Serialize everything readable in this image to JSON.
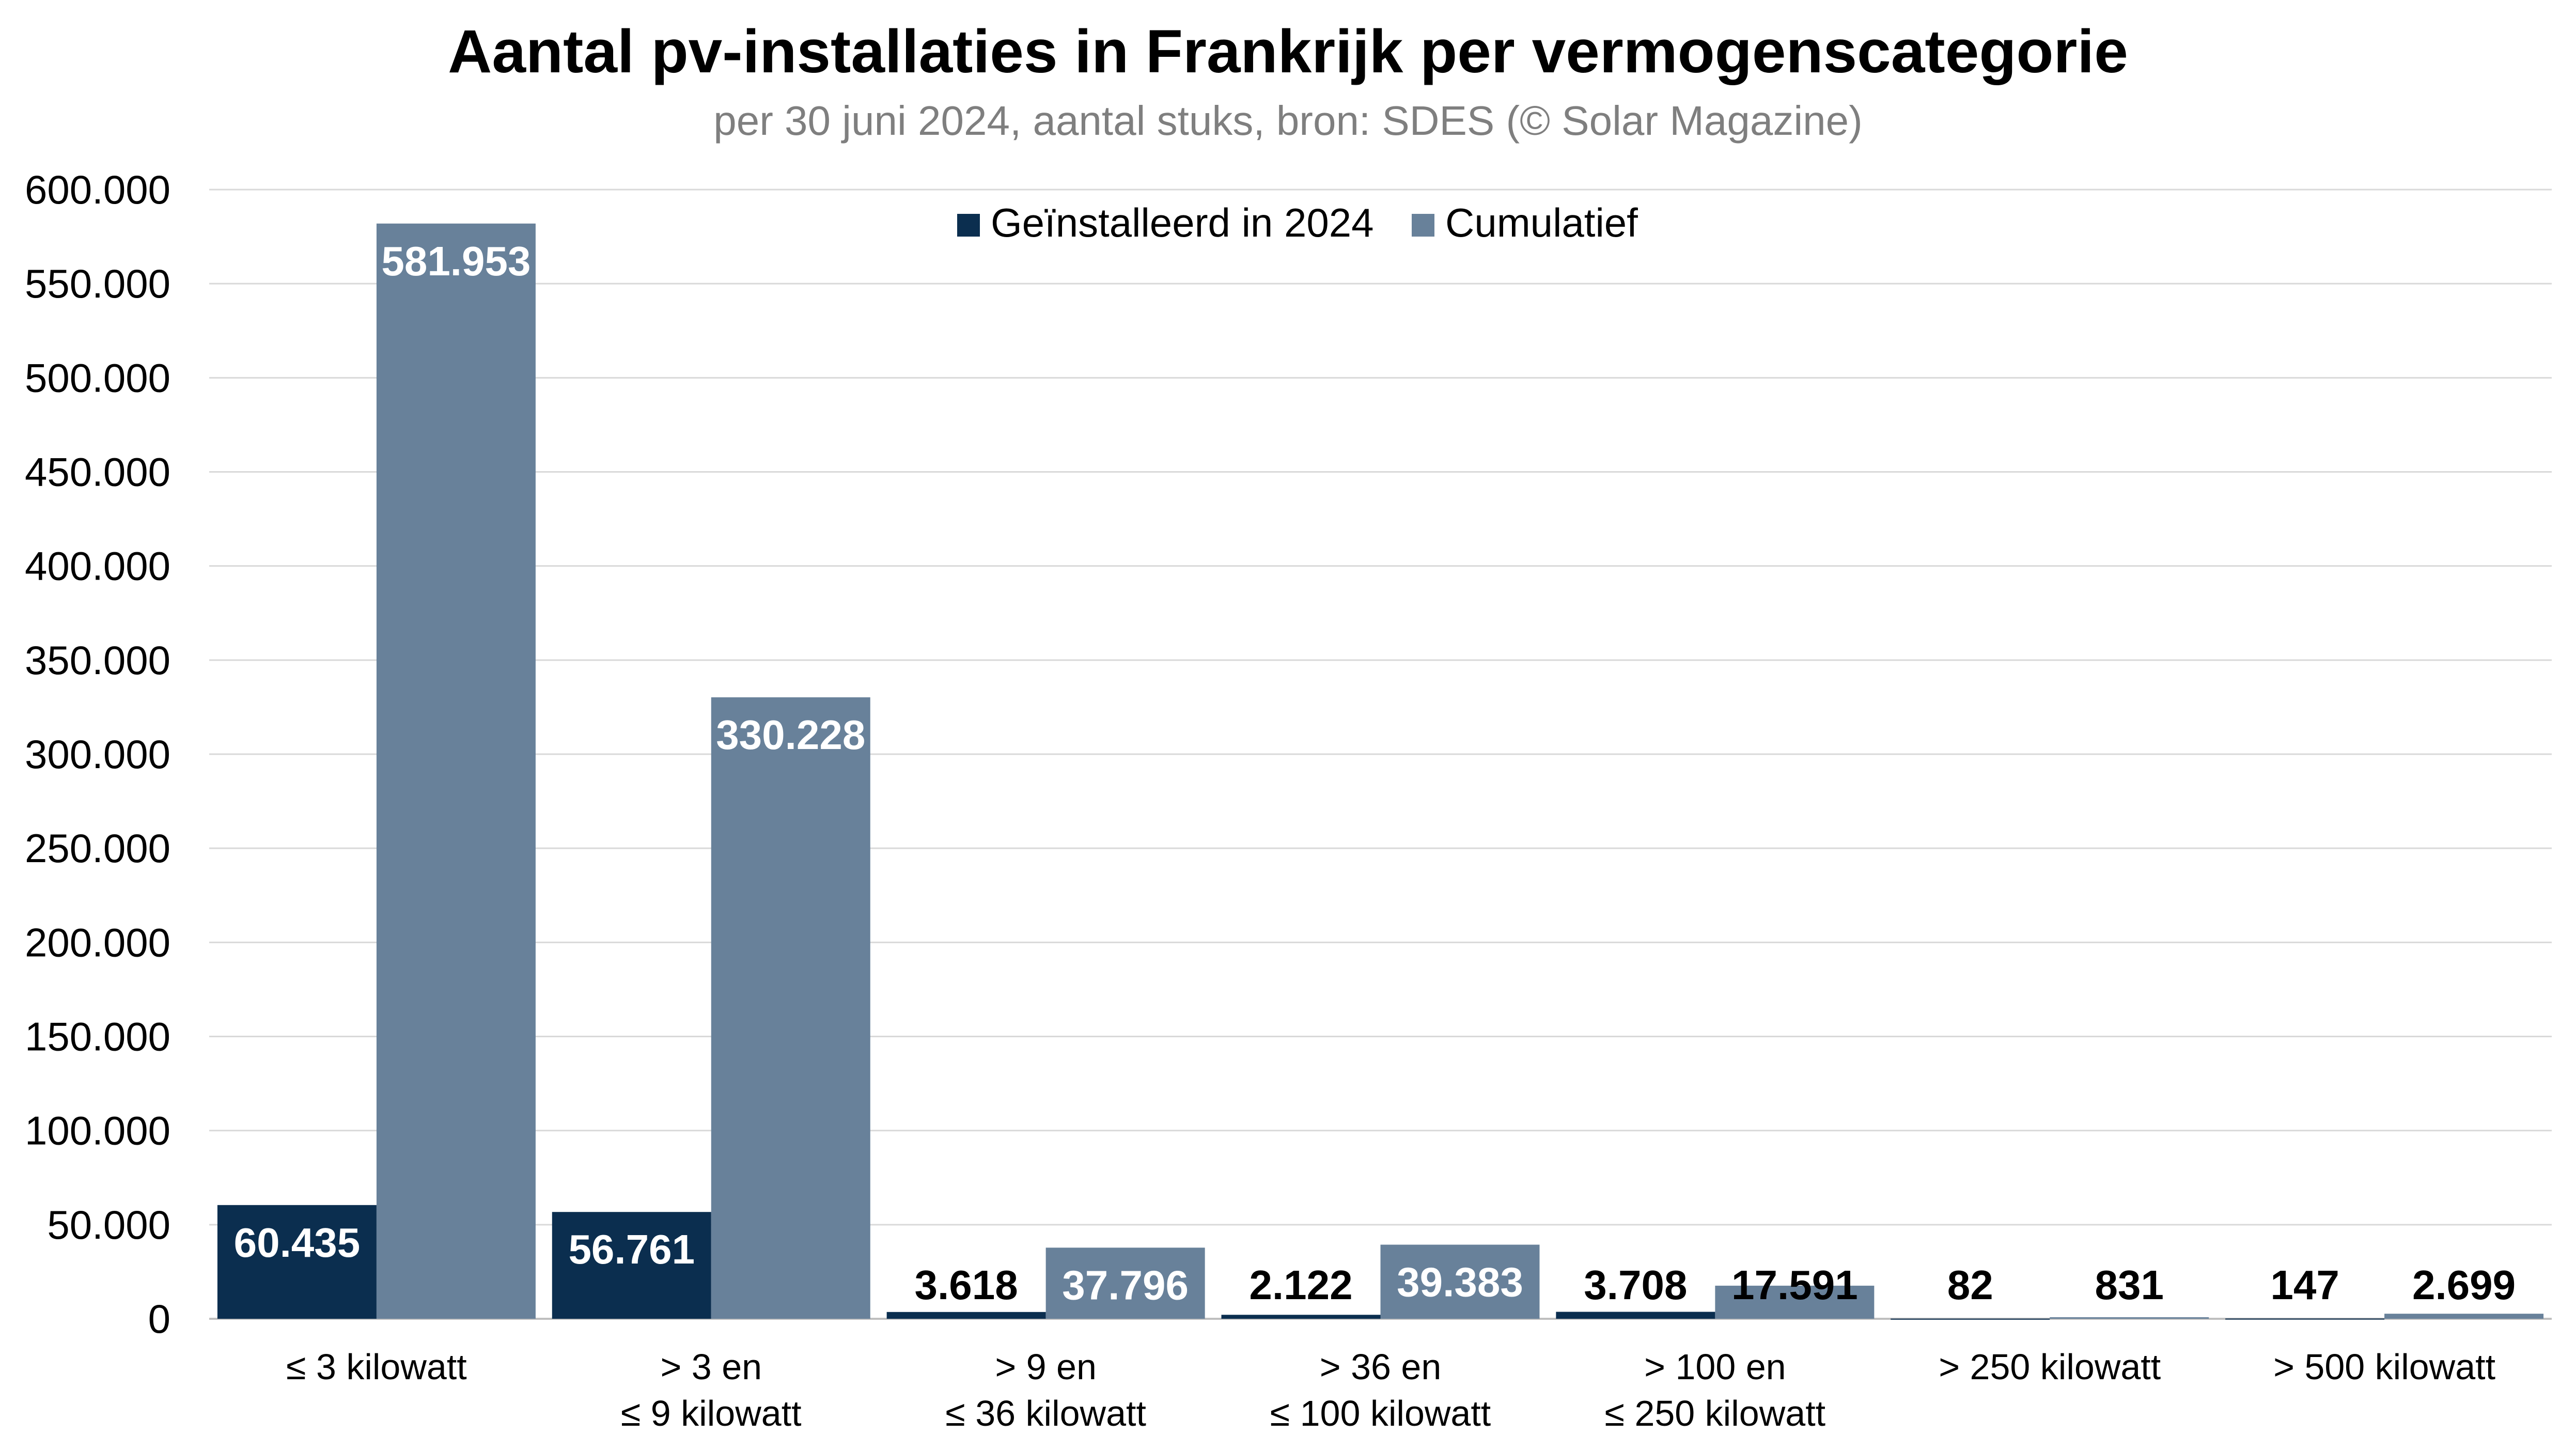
{
  "chart_data": {
    "type": "bar",
    "title": "Aantal pv-installaties in Frankrijk per vermogenscategorie",
    "subtitle": "per 30 juni 2024, aantal stuks, bron: SDES (© Solar Magazine)",
    "categories": [
      [
        "≤ 3 kilowatt"
      ],
      [
        "> 3 en",
        "≤ 9 kilowatt"
      ],
      [
        "> 9 en",
        "≤ 36 kilowatt"
      ],
      [
        "> 36 en",
        "≤ 100 kilowatt"
      ],
      [
        "> 100 en",
        "≤ 250 kilowatt"
      ],
      [
        "> 250 kilowatt"
      ],
      [
        "> 500 kilowatt"
      ]
    ],
    "series": [
      {
        "name": "Geïnstalleerd in 2024",
        "color": "#0b2e4f",
        "values": [
          60435,
          56761,
          3618,
          2122,
          3708,
          82,
          147
        ],
        "labels": [
          "60.435",
          "56.761",
          "3.618",
          "2.122",
          "3.708",
          "82",
          "147"
        ]
      },
      {
        "name": "Cumulatief",
        "color": "#68819a",
        "values": [
          581953,
          330228,
          37796,
          39383,
          17591,
          831,
          2699
        ],
        "labels": [
          "581.953",
          "330.228",
          "37.796",
          "39.383",
          "17.591",
          "831",
          "2.699"
        ]
      }
    ],
    "ylim": [
      0,
      600000
    ],
    "yticks": [
      0,
      50000,
      100000,
      150000,
      200000,
      250000,
      300000,
      350000,
      400000,
      450000,
      500000,
      550000,
      600000
    ],
    "ytick_labels": [
      "0",
      "50.000",
      "100.000",
      "150.000",
      "200.000",
      "250.000",
      "300.000",
      "350.000",
      "400.000",
      "450.000",
      "500.000",
      "550.000",
      "600.000"
    ],
    "xlabel": "",
    "ylabel": "",
    "grid": true,
    "legend_position": "top-center"
  }
}
